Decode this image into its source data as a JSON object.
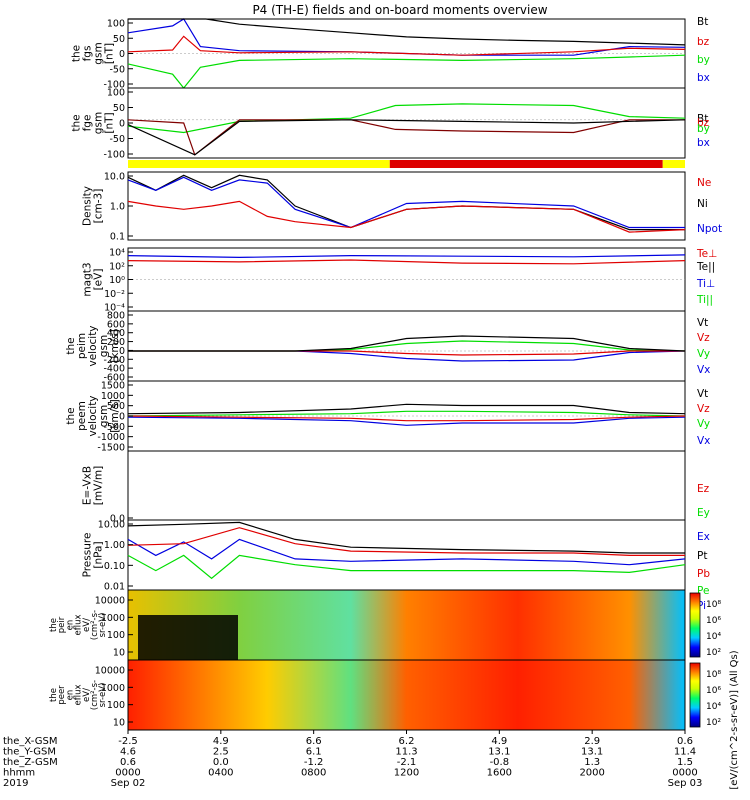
{
  "title": "P4 (TH-E) fields and on-board moments overview",
  "chart_data": {
    "type": "line",
    "panels": [
      {
        "id": "fgs",
        "ylabel": [
          "the",
          "fgs",
          "gsm",
          "[nT]"
        ],
        "yticks": [
          "100",
          "50",
          "0",
          "-50",
          "-100"
        ],
        "ylim": [
          -100,
          100
        ],
        "legend": [
          {
            "label": "Bt",
            "color": "#000000"
          },
          {
            "label": "bz",
            "color": "#e00000"
          },
          {
            "label": "by",
            "color": "#00dd00"
          },
          {
            "label": "bx",
            "color": "#0000e0"
          }
        ],
        "series": [
          {
            "color": "#0000e0",
            "x": [
              0.0,
              0.08,
              0.1,
              0.13,
              0.2,
              0.4,
              0.6,
              0.8,
              0.9,
              1.0
            ],
            "y": [
              60,
              80,
              100,
              20,
              8,
              5,
              -5,
              -5,
              20,
              18
            ]
          },
          {
            "color": "#00dd00",
            "x": [
              0.0,
              0.08,
              0.1,
              0.13,
              0.2,
              0.4,
              0.6,
              0.8,
              0.9,
              1.0
            ],
            "y": [
              -30,
              -60,
              -100,
              -40,
              -20,
              -15,
              -20,
              -15,
              -10,
              -5
            ]
          },
          {
            "color": "#e00000",
            "x": [
              0.0,
              0.08,
              0.1,
              0.13,
              0.2,
              0.4,
              0.6,
              0.8,
              0.9,
              1.0
            ],
            "y": [
              5,
              10,
              50,
              8,
              2,
              5,
              -5,
              5,
              15,
              12
            ]
          },
          {
            "color": "#000000",
            "x": [
              0.0,
              0.1,
              0.14,
              0.2,
              0.3,
              0.4,
              0.5,
              0.6,
              0.7,
              0.8,
              0.9,
              1.0
            ],
            "y": [
              100,
              100,
              100,
              85,
              72,
              60,
              48,
              42,
              38,
              35,
              30,
              25
            ]
          }
        ]
      },
      {
        "id": "fge",
        "ylabel": [
          "the",
          "fge",
          "gsm",
          "[nT]"
        ],
        "yticks": [
          "100",
          "50",
          "0",
          "-50",
          "-100"
        ],
        "ylim": [
          -120,
          100
        ],
        "legend": [
          {
            "label": "Bt",
            "color": "#000000"
          },
          {
            "label": "bz",
            "color": "#e00000"
          },
          {
            "label": "by",
            "color": "#00dd00"
          },
          {
            "label": "bx",
            "color": "#0000e0"
          }
        ],
        "series": [
          {
            "color": "#00dd00",
            "x": [
              0.0,
              0.1,
              0.2,
              0.4,
              0.48,
              0.6,
              0.8,
              0.9,
              1.0
            ],
            "y": [
              -20,
              -40,
              -5,
              5,
              45,
              50,
              45,
              10,
              5
            ]
          },
          {
            "color": "#800000",
            "x": [
              0.0,
              0.1,
              0.12,
              0.2,
              0.4,
              0.48,
              0.6,
              0.8,
              0.9,
              1.0
            ],
            "y": [
              0,
              -10,
              -110,
              0,
              0,
              -30,
              -35,
              -40,
              0,
              0
            ]
          },
          {
            "color": "#000000",
            "x": [
              0.0,
              0.12,
              0.2,
              0.4,
              0.6,
              0.8,
              1.0
            ],
            "y": [
              -15,
              -110,
              -5,
              0,
              -5,
              -10,
              0
            ]
          }
        ]
      },
      {
        "id": "dens",
        "ylabel": [
          "Density",
          "[cm-3]"
        ],
        "yticks": [
          "10.0",
          "1.0",
          "0.1"
        ],
        "ylim": [
          0.1,
          40
        ],
        "legend": [
          {
            "label": "Ne",
            "color": "#e00000"
          },
          {
            "label": "Ni",
            "color": "#000000"
          },
          {
            "label": "Npot",
            "color": "#0000e0"
          }
        ],
        "series": [
          {
            "color": "#000000",
            "x": [
              0.0,
              0.05,
              0.1,
              0.15,
              0.2,
              0.25,
              0.3,
              0.4,
              0.5,
              0.6,
              0.8,
              0.9,
              1.0
            ],
            "y": [
              25,
              8,
              30,
              10,
              30,
              20,
              2,
              0.3,
              1.5,
              2.0,
              1.5,
              0.25,
              0.25
            ]
          },
          {
            "color": "#0000e0",
            "x": [
              0.0,
              0.05,
              0.1,
              0.15,
              0.2,
              0.25,
              0.3,
              0.4,
              0.5,
              0.6,
              0.8,
              0.9,
              1.0
            ],
            "y": [
              20,
              8,
              25,
              8,
              20,
              15,
              1.5,
              0.3,
              2.5,
              3.0,
              2.0,
              0.3,
              0.3
            ]
          },
          {
            "color": "#e00000",
            "x": [
              0.0,
              0.05,
              0.1,
              0.15,
              0.2,
              0.25,
              0.3,
              0.4,
              0.5,
              0.6,
              0.8,
              0.9,
              1.0
            ],
            "y": [
              3,
              2,
              1.5,
              2,
              3,
              0.8,
              0.5,
              0.3,
              1.5,
              2.0,
              1.5,
              0.2,
              0.25
            ]
          }
        ]
      },
      {
        "id": "temp",
        "ylabel": [
          "magt3",
          "[eV]"
        ],
        "yticks": [
          "10⁴",
          "10²",
          "10⁰",
          "10⁻²",
          "10⁻⁴"
        ],
        "ylim": [
          -5,
          5
        ],
        "legend": [
          {
            "label": "Te⊥",
            "color": "#e00000"
          },
          {
            "label": "Te||",
            "color": "#000000"
          },
          {
            "label": "Ti⊥",
            "color": "#0000e0"
          },
          {
            "label": "Ti||",
            "color": "#00dd00"
          }
        ],
        "series": [
          {
            "color": "#0000e0",
            "x": [
              0.0,
              0.2,
              0.4,
              0.6,
              0.8,
              1.0
            ],
            "y": [
              3.8,
              3.5,
              3.8,
              3.7,
              3.6,
              3.9
            ]
          },
          {
            "color": "#e00000",
            "x": [
              0.0,
              0.2,
              0.4,
              0.6,
              0.8,
              1.0
            ],
            "y": [
              3.0,
              2.8,
              3.1,
              2.6,
              2.5,
              3.0
            ]
          }
        ]
      },
      {
        "id": "peim",
        "ylabel": [
          "the",
          "peim",
          "velocity",
          "gsm",
          "[km/s]"
        ],
        "yticks": [
          "800",
          "600",
          "400",
          "200",
          "0",
          "-200",
          "-400",
          "-600"
        ],
        "ylim": [
          -600,
          800
        ],
        "legend": [
          {
            "label": "Vt",
            "color": "#000000"
          },
          {
            "label": "Vz",
            "color": "#e00000"
          },
          {
            "label": "Vy",
            "color": "#00dd00"
          },
          {
            "label": "Vx",
            "color": "#0000e0"
          }
        ],
        "series": [
          {
            "color": "#0000e0",
            "x": [
              0.0,
              0.3,
              0.4,
              0.5,
              0.6,
              0.8,
              0.9,
              1.0
            ],
            "y": [
              0,
              0,
              -50,
              -150,
              -200,
              -180,
              -30,
              0
            ]
          },
          {
            "color": "#00dd00",
            "x": [
              0.0,
              0.3,
              0.4,
              0.5,
              0.6,
              0.8,
              0.9,
              1.0
            ],
            "y": [
              0,
              0,
              30,
              150,
              200,
              150,
              20,
              0
            ]
          },
          {
            "color": "#e00000",
            "x": [
              0.0,
              0.3,
              0.4,
              0.5,
              0.6,
              0.8,
              0.9,
              1.0
            ],
            "y": [
              0,
              0,
              0,
              -50,
              -80,
              -60,
              0,
              0
            ]
          },
          {
            "color": "#000000",
            "x": [
              0.0,
              0.3,
              0.4,
              0.5,
              0.6,
              0.8,
              0.9,
              1.0
            ],
            "y": [
              0,
              0,
              50,
              250,
              300,
              250,
              50,
              0
            ]
          }
        ]
      },
      {
        "id": "peem",
        "ylabel": [
          "the",
          "peem",
          "velocity",
          "gsm",
          "[km/s]"
        ],
        "yticks": [
          "1500",
          "1000",
          "500",
          "0",
          "-500",
          "-1000",
          "-1500"
        ],
        "ylim": [
          -1500,
          1500
        ],
        "legend": [
          {
            "label": "Vt",
            "color": "#000000"
          },
          {
            "label": "Vz",
            "color": "#e00000"
          },
          {
            "label": "Vy",
            "color": "#00dd00"
          },
          {
            "label": "Vx",
            "color": "#0000e0"
          }
        ],
        "series": [
          {
            "color": "#0000e0",
            "x": [
              0.0,
              0.2,
              0.4,
              0.5,
              0.6,
              0.8,
              0.9,
              1.0
            ],
            "y": [
              -50,
              -100,
              -200,
              -400,
              -300,
              -300,
              -100,
              -50
            ]
          },
          {
            "color": "#00dd00",
            "x": [
              0.0,
              0.2,
              0.4,
              0.5,
              0.6,
              0.8,
              0.9,
              1.0
            ],
            "y": [
              0,
              50,
              100,
              200,
              200,
              150,
              50,
              0
            ]
          },
          {
            "color": "#e00000",
            "x": [
              0.0,
              0.2,
              0.4,
              0.5,
              0.6,
              0.8,
              0.9,
              1.0
            ],
            "y": [
              0,
              -50,
              -100,
              -200,
              -200,
              -150,
              -50,
              0
            ]
          },
          {
            "color": "#000000",
            "x": [
              0.0,
              0.2,
              0.4,
              0.5,
              0.6,
              0.8,
              0.9,
              1.0
            ],
            "y": [
              100,
              150,
              300,
              500,
              450,
              450,
              150,
              100
            ]
          }
        ]
      },
      {
        "id": "efield",
        "ylabel": [
          "E=-VxB",
          "[mV/m]"
        ],
        "yticks": [
          "0.0"
        ],
        "ylim": [
          0,
          1
        ],
        "legend": [
          {
            "label": "Ez",
            "color": "#e00000"
          },
          {
            "label": "Ey",
            "color": "#00dd00"
          },
          {
            "label": "Ex",
            "color": "#0000e0"
          }
        ],
        "series": []
      },
      {
        "id": "press",
        "ylabel": [
          "Pressure",
          "[nPa]"
        ],
        "yticks": [
          "10.00",
          "1.00",
          "0.10",
          "0.01"
        ],
        "ylim": [
          0.005,
          20
        ],
        "legend": [
          {
            "label": "Pt",
            "color": "#000000"
          },
          {
            "label": "Pb",
            "color": "#e00000"
          },
          {
            "label": "Pe",
            "color": "#00dd00"
          },
          {
            "label": "Pi",
            "color": "#0000e0"
          }
        ],
        "series": [
          {
            "color": "#00dd00",
            "x": [
              0.0,
              0.05,
              0.1,
              0.15,
              0.2,
              0.3,
              0.4,
              0.6,
              0.8,
              0.9,
              1.0
            ],
            "y": [
              0.3,
              0.05,
              0.3,
              0.02,
              0.3,
              0.1,
              0.05,
              0.05,
              0.05,
              0.04,
              0.1
            ]
          },
          {
            "color": "#0000e0",
            "x": [
              0.0,
              0.05,
              0.1,
              0.15,
              0.2,
              0.3,
              0.4,
              0.6,
              0.8,
              0.9,
              1.0
            ],
            "y": [
              2,
              0.3,
              1.5,
              0.2,
              2,
              0.2,
              0.15,
              0.2,
              0.15,
              0.1,
              0.2
            ]
          },
          {
            "color": "#e00000",
            "x": [
              0.0,
              0.1,
              0.2,
              0.3,
              0.4,
              0.6,
              0.8,
              0.9,
              1.0
            ],
            "y": [
              1,
              1.2,
              8,
              1.2,
              0.5,
              0.4,
              0.4,
              0.3,
              0.3
            ]
          },
          {
            "color": "#000000",
            "x": [
              0.0,
              0.1,
              0.2,
              0.3,
              0.4,
              0.6,
              0.8,
              0.9,
              1.0
            ],
            "y": [
              10,
              12,
              15,
              2.0,
              0.8,
              0.6,
              0.5,
              0.4,
              0.4
            ]
          }
        ]
      }
    ],
    "spectrograms": [
      {
        "id": "peir",
        "ylabel": [
          "the",
          "peir",
          "en",
          "eflux",
          "eV/",
          "(cm²-s-",
          "sr-eV)"
        ],
        "yticks": [
          "10000",
          "1000",
          "100",
          "10"
        ]
      },
      {
        "id": "peer",
        "ylabel": [
          "the",
          "peer",
          "en",
          "eflux",
          "eV/",
          "(cm²-s-",
          "sr-eV)"
        ],
        "yticks": [
          "10000",
          "1000",
          "100",
          "10"
        ]
      }
    ],
    "colorbars": [
      {
        "ticks": [
          "10⁸",
          "10⁶",
          "10⁴",
          "10²"
        ]
      },
      {
        "ticks": [
          "10⁸",
          "10⁶",
          "10⁴",
          "10²"
        ]
      }
    ],
    "colorbar_label": "[eV/(cm^2-s-sr-eV)] (All Qs)",
    "mode_bar": {
      "colors": [
        "#ffff00",
        "#dd0000",
        "#ffff00"
      ],
      "breaks": [
        0.47,
        0.96
      ]
    },
    "x_axis": {
      "rows": [
        {
          "label": "the_X-GSM",
          "values": [
            "-2.5",
            "4.9",
            "6.6",
            "6.2",
            "4.9",
            "2.9",
            "0.6"
          ]
        },
        {
          "label": "the_Y-GSM",
          "values": [
            "4.6",
            "2.5",
            "6.1",
            "11.3",
            "13.1",
            "13.1",
            "11.4"
          ]
        },
        {
          "label": "the_Z-GSM",
          "values": [
            "0.6",
            "0.0",
            "-1.2",
            "-2.1",
            "-0.8",
            "1.3",
            "1.5"
          ]
        },
        {
          "label": "hhmm",
          "values": [
            "0000",
            "0400",
            "0800",
            "1200",
            "1600",
            "2000",
            "0000"
          ]
        },
        {
          "label": "2019",
          "values": [
            "Sep 02",
            "",
            "",
            "",
            "",
            "",
            "Sep 03"
          ]
        }
      ]
    }
  }
}
